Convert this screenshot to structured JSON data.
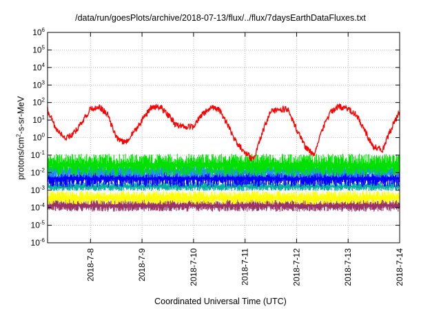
{
  "chart_data": {
    "type": "line",
    "title": "/data/run/goesPlots/archive/2018-07-13/flux/../flux/7daysEarthDataFluxes.txt",
    "xlabel": "Coordinated Universal Time (UTC)",
    "ylabel": {
      "pre": "protons/cm",
      "sup": "2",
      "post": "-s-sr-MeV"
    },
    "yscale": "log",
    "ylim_exp": [
      -6,
      6
    ],
    "y_ticks": [
      {
        "base": "10",
        "exp": "6"
      },
      {
        "base": "10",
        "exp": "5"
      },
      {
        "base": "10",
        "exp": "4"
      },
      {
        "base": "10",
        "exp": "3"
      },
      {
        "base": "10",
        "exp": "2"
      },
      {
        "base": "10",
        "exp": "1"
      },
      {
        "base": "10",
        "exp": "0"
      },
      {
        "base": "10",
        "exp": "-1"
      },
      {
        "base": "10",
        "exp": "-2"
      },
      {
        "base": "10",
        "exp": "-3"
      },
      {
        "base": "10",
        "exp": "-4"
      },
      {
        "base": "10",
        "exp": "-5"
      },
      {
        "base": "10",
        "exp": "-6"
      }
    ],
    "x_ticks": [
      "2018-7-8",
      "2018-7-9",
      "2018-7-10",
      "2018-7-11",
      "2018-7-12",
      "2018-7-13",
      "2018-7-14"
    ],
    "xlim": [
      "2018-07-07T04:00",
      "2018-07-14T00:00"
    ],
    "grid": true,
    "series": [
      {
        "color": "#ff0000",
        "x": [
          "2018-07-07T04:00",
          "2018-07-07T08:00",
          "2018-07-07T12:00",
          "2018-07-07T16:00",
          "2018-07-07T20:00",
          "2018-07-08T00:00",
          "2018-07-08T04:00",
          "2018-07-08T08:00",
          "2018-07-08T12:00",
          "2018-07-08T16:00",
          "2018-07-08T20:00",
          "2018-07-09T00:00",
          "2018-07-09T04:00",
          "2018-07-09T08:00",
          "2018-07-09T12:00",
          "2018-07-09T16:00",
          "2018-07-09T20:00",
          "2018-07-10T00:00",
          "2018-07-10T04:00",
          "2018-07-10T08:00",
          "2018-07-10T12:00",
          "2018-07-10T16:00",
          "2018-07-10T20:00",
          "2018-07-11T00:00",
          "2018-07-11T04:00",
          "2018-07-11T08:00",
          "2018-07-11T12:00",
          "2018-07-11T16:00",
          "2018-07-11T20:00",
          "2018-07-12T00:00",
          "2018-07-12T04:00",
          "2018-07-12T08:00",
          "2018-07-12T12:00",
          "2018-07-12T16:00",
          "2018-07-12T20:00",
          "2018-07-13T00:00",
          "2018-07-13T04:00",
          "2018-07-13T08:00",
          "2018-07-13T12:00",
          "2018-07-13T16:00",
          "2018-07-13T20:00",
          "2018-07-14T00:00"
        ],
        "y": [
          40,
          3,
          1,
          1.5,
          8,
          40,
          60,
          20,
          1,
          0.5,
          2,
          10,
          50,
          60,
          20,
          5,
          4,
          5,
          20,
          50,
          40,
          5,
          0.5,
          0.15,
          0.05,
          2,
          30,
          40,
          40,
          3,
          0.3,
          0.1,
          3,
          30,
          60,
          40,
          20,
          2,
          0.3,
          0.2,
          3,
          30
        ]
      },
      {
        "color": "#00e000",
        "y_lo": 0.006,
        "y_hi": 0.12
      },
      {
        "color": "#1e90ff",
        "y_lo": 0.005,
        "y_hi": 0.03
      },
      {
        "color": "#0000ff",
        "y_lo": 0.0015,
        "y_hi": 0.015
      },
      {
        "color": "#00b0a0",
        "y_lo": 0.0009,
        "y_hi": 0.003
      },
      {
        "color": "#ffff00",
        "y_lo": 0.00015,
        "y_hi": 0.0009
      },
      {
        "color": "#993366",
        "y_lo": 6e-05,
        "y_hi": 0.0003
      }
    ]
  }
}
